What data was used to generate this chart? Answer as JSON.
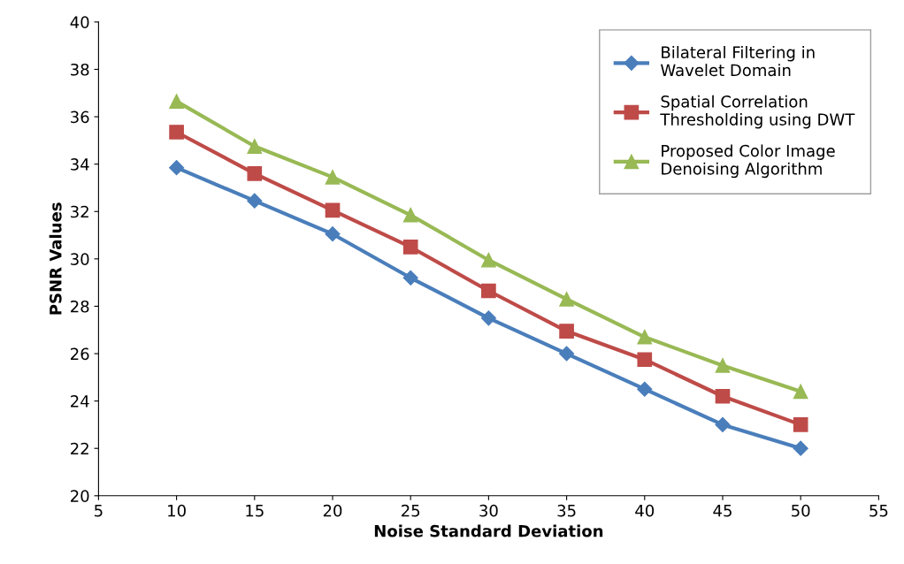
{
  "chart_data": {
    "type": "line",
    "xlabel": "Noise Standard Deviation",
    "ylabel": "PSNR Values",
    "x": [
      10,
      15,
      20,
      25,
      30,
      35,
      40,
      45,
      50
    ],
    "series": [
      {
        "name": "Bilateral Filtering in\nWavelet Domain",
        "color": "#4a7ebb",
        "marker": "diamond",
        "values": [
          33.85,
          32.45,
          31.05,
          29.2,
          27.5,
          26.0,
          24.5,
          23.0,
          22.0
        ]
      },
      {
        "name": "Spatial Correlation\nThresholding using DWT",
        "color": "#be4b48",
        "marker": "square",
        "values": [
          35.35,
          33.6,
          32.05,
          30.5,
          28.65,
          26.95,
          25.75,
          24.2,
          23.0
        ]
      },
      {
        "name": "Proposed Color Image\nDenoising Algorithm",
        "color": "#98b954",
        "marker": "triangle",
        "values": [
          36.65,
          34.75,
          33.45,
          31.85,
          29.95,
          28.3,
          26.7,
          25.5,
          24.4
        ]
      }
    ],
    "xlim": [
      5,
      55
    ],
    "xticks": [
      5,
      10,
      15,
      20,
      25,
      30,
      35,
      40,
      45,
      50,
      55
    ],
    "ylim": [
      20,
      40
    ],
    "yticks": [
      20,
      22,
      24,
      26,
      28,
      30,
      32,
      34,
      36,
      38,
      40
    ],
    "grid": false,
    "legend": "top right",
    "line_style": "solid"
  }
}
